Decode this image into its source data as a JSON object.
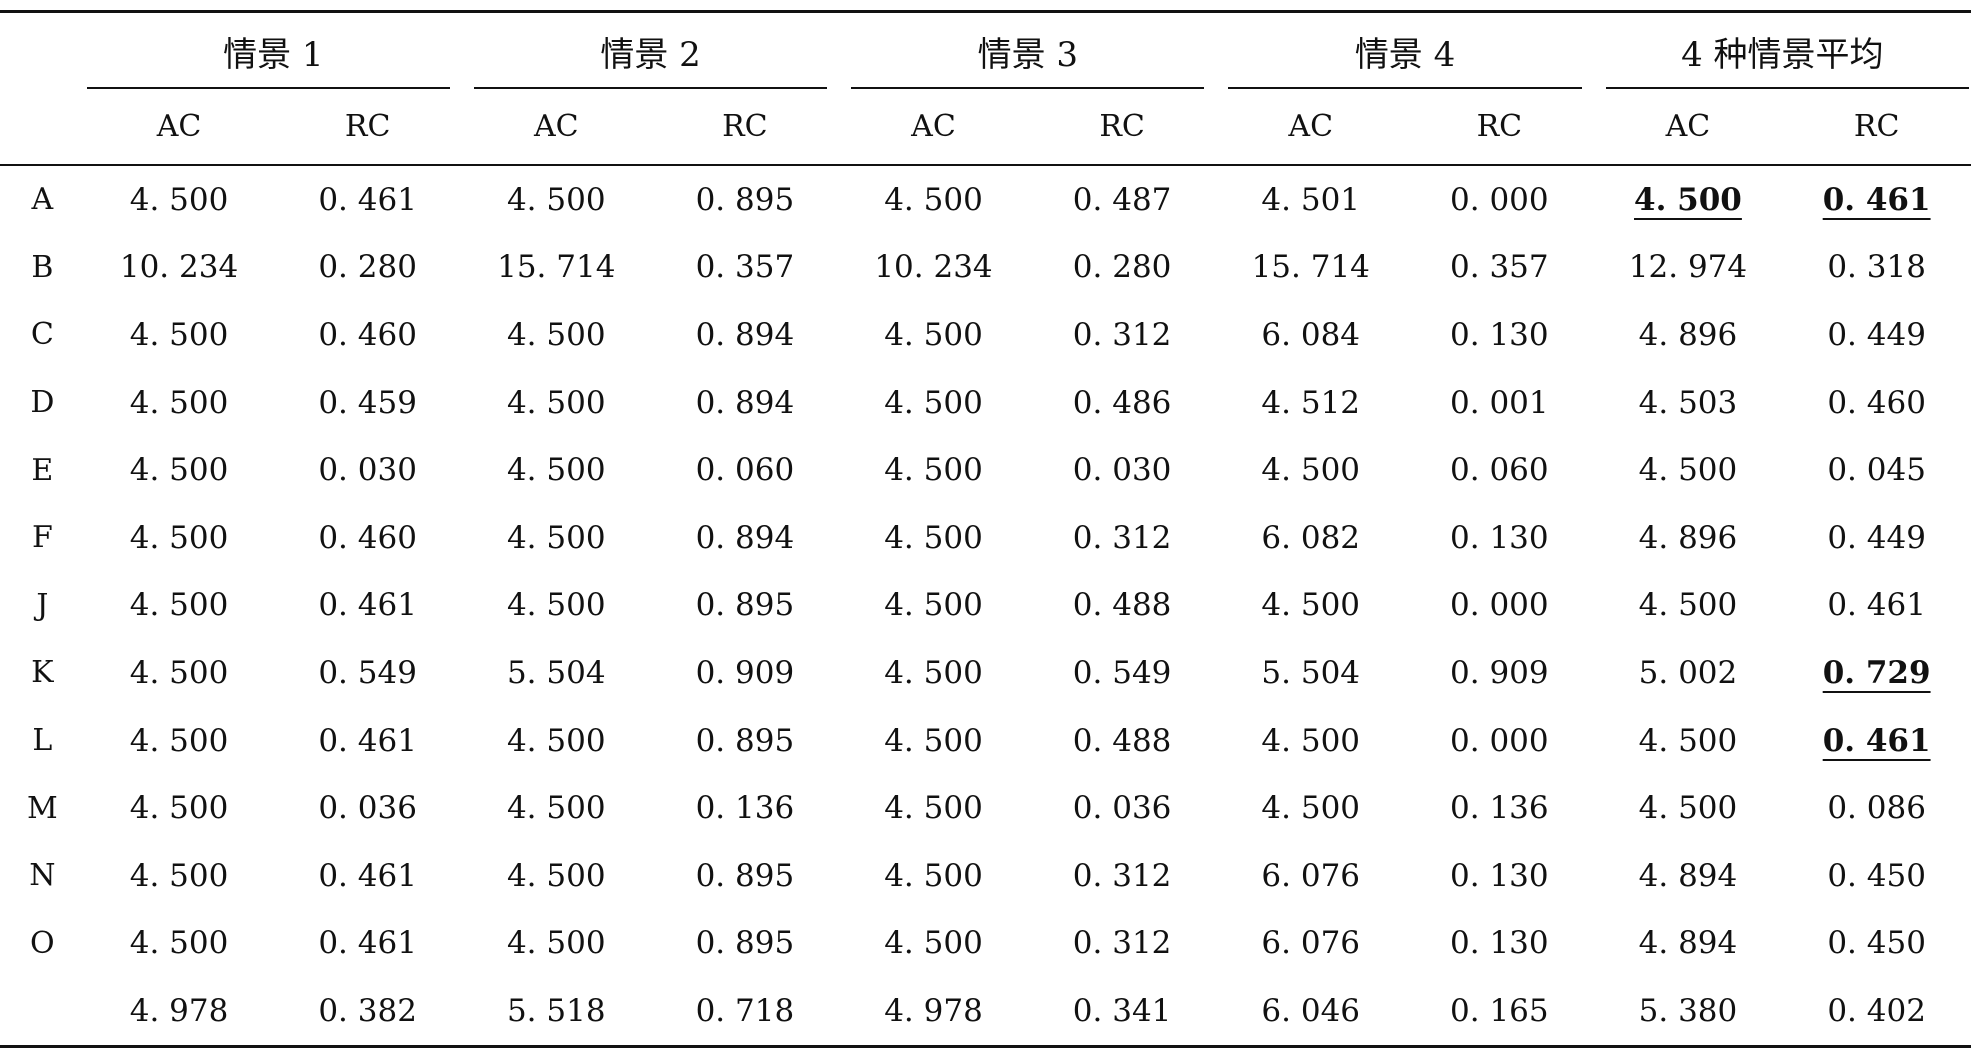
{
  "table": {
    "groups": [
      "情景 1",
      "情景 2",
      "情景 3",
      "情景 4",
      "4 种情景平均"
    ],
    "sub_headers": [
      "AC",
      "RC",
      "AC",
      "RC",
      "AC",
      "RC",
      "AC",
      "RC",
      "AC",
      "RC"
    ],
    "rows": [
      {
        "label": "A",
        "cells": [
          {
            "v": "4. 500",
            "bold": false
          },
          {
            "v": "0. 461",
            "bold": false
          },
          {
            "v": "4. 500",
            "bold": false
          },
          {
            "v": "0. 895",
            "bold": false
          },
          {
            "v": "4. 500",
            "bold": false
          },
          {
            "v": "0. 487",
            "bold": false
          },
          {
            "v": "4. 501",
            "bold": false
          },
          {
            "v": "0. 000",
            "bold": false
          },
          {
            "v": "4. 500",
            "bold": true
          },
          {
            "v": "0. 461",
            "bold": true
          }
        ]
      },
      {
        "label": "B",
        "cells": [
          {
            "v": "10. 234",
            "bold": false
          },
          {
            "v": "0. 280",
            "bold": false
          },
          {
            "v": "15. 714",
            "bold": false
          },
          {
            "v": "0. 357",
            "bold": false
          },
          {
            "v": "10. 234",
            "bold": false
          },
          {
            "v": "0. 280",
            "bold": false
          },
          {
            "v": "15. 714",
            "bold": false
          },
          {
            "v": "0. 357",
            "bold": false
          },
          {
            "v": "12. 974",
            "bold": false
          },
          {
            "v": "0. 318",
            "bold": false
          }
        ]
      },
      {
        "label": "C",
        "cells": [
          {
            "v": "4. 500",
            "bold": false
          },
          {
            "v": "0. 460",
            "bold": false
          },
          {
            "v": "4. 500",
            "bold": false
          },
          {
            "v": "0. 894",
            "bold": false
          },
          {
            "v": "4. 500",
            "bold": false
          },
          {
            "v": "0. 312",
            "bold": false
          },
          {
            "v": "6. 084",
            "bold": false
          },
          {
            "v": "0. 130",
            "bold": false
          },
          {
            "v": "4. 896",
            "bold": false
          },
          {
            "v": "0. 449",
            "bold": false
          }
        ]
      },
      {
        "label": "D",
        "cells": [
          {
            "v": "4. 500",
            "bold": false
          },
          {
            "v": "0. 459",
            "bold": false
          },
          {
            "v": "4. 500",
            "bold": false
          },
          {
            "v": "0. 894",
            "bold": false
          },
          {
            "v": "4. 500",
            "bold": false
          },
          {
            "v": "0. 486",
            "bold": false
          },
          {
            "v": "4. 512",
            "bold": false
          },
          {
            "v": "0. 001",
            "bold": false
          },
          {
            "v": "4. 503",
            "bold": false
          },
          {
            "v": "0. 460",
            "bold": false
          }
        ]
      },
      {
        "label": "E",
        "cells": [
          {
            "v": "4. 500",
            "bold": false
          },
          {
            "v": "0. 030",
            "bold": false
          },
          {
            "v": "4. 500",
            "bold": false
          },
          {
            "v": "0. 060",
            "bold": false
          },
          {
            "v": "4. 500",
            "bold": false
          },
          {
            "v": "0. 030",
            "bold": false
          },
          {
            "v": "4. 500",
            "bold": false
          },
          {
            "v": "0. 060",
            "bold": false
          },
          {
            "v": "4. 500",
            "bold": false
          },
          {
            "v": "0. 045",
            "bold": false
          }
        ]
      },
      {
        "label": "F",
        "cells": [
          {
            "v": "4. 500",
            "bold": false
          },
          {
            "v": "0. 460",
            "bold": false
          },
          {
            "v": "4. 500",
            "bold": false
          },
          {
            "v": "0. 894",
            "bold": false
          },
          {
            "v": "4. 500",
            "bold": false
          },
          {
            "v": "0. 312",
            "bold": false
          },
          {
            "v": "6. 082",
            "bold": false
          },
          {
            "v": "0. 130",
            "bold": false
          },
          {
            "v": "4. 896",
            "bold": false
          },
          {
            "v": "0. 449",
            "bold": false
          }
        ]
      },
      {
        "label": "J",
        "cells": [
          {
            "v": "4. 500",
            "bold": false
          },
          {
            "v": "0. 461",
            "bold": false
          },
          {
            "v": "4. 500",
            "bold": false
          },
          {
            "v": "0. 895",
            "bold": false
          },
          {
            "v": "4. 500",
            "bold": false
          },
          {
            "v": "0. 488",
            "bold": false
          },
          {
            "v": "4. 500",
            "bold": false
          },
          {
            "v": "0. 000",
            "bold": false
          },
          {
            "v": "4. 500",
            "bold": false
          },
          {
            "v": "0. 461",
            "bold": false
          }
        ]
      },
      {
        "label": "K",
        "cells": [
          {
            "v": "4. 500",
            "bold": false
          },
          {
            "v": "0. 549",
            "bold": false
          },
          {
            "v": "5. 504",
            "bold": false
          },
          {
            "v": "0. 909",
            "bold": false
          },
          {
            "v": "4. 500",
            "bold": false
          },
          {
            "v": "0. 549",
            "bold": false
          },
          {
            "v": "5. 504",
            "bold": false
          },
          {
            "v": "0. 909",
            "bold": false
          },
          {
            "v": "5. 002",
            "bold": false
          },
          {
            "v": "0. 729",
            "bold": true
          }
        ]
      },
      {
        "label": "L",
        "cells": [
          {
            "v": "4. 500",
            "bold": false
          },
          {
            "v": "0. 461",
            "bold": false
          },
          {
            "v": "4. 500",
            "bold": false
          },
          {
            "v": "0. 895",
            "bold": false
          },
          {
            "v": "4. 500",
            "bold": false
          },
          {
            "v": "0. 488",
            "bold": false
          },
          {
            "v": "4. 500",
            "bold": false
          },
          {
            "v": "0. 000",
            "bold": false
          },
          {
            "v": "4. 500",
            "bold": false
          },
          {
            "v": "0. 461",
            "bold": true
          }
        ]
      },
      {
        "label": "M",
        "cells": [
          {
            "v": "4. 500",
            "bold": false
          },
          {
            "v": "0. 036",
            "bold": false
          },
          {
            "v": "4. 500",
            "bold": false
          },
          {
            "v": "0. 136",
            "bold": false
          },
          {
            "v": "4. 500",
            "bold": false
          },
          {
            "v": "0. 036",
            "bold": false
          },
          {
            "v": "4. 500",
            "bold": false
          },
          {
            "v": "0. 136",
            "bold": false
          },
          {
            "v": "4. 500",
            "bold": false
          },
          {
            "v": "0. 086",
            "bold": false
          }
        ]
      },
      {
        "label": "N",
        "cells": [
          {
            "v": "4. 500",
            "bold": false
          },
          {
            "v": "0. 461",
            "bold": false
          },
          {
            "v": "4. 500",
            "bold": false
          },
          {
            "v": "0. 895",
            "bold": false
          },
          {
            "v": "4. 500",
            "bold": false
          },
          {
            "v": "0. 312",
            "bold": false
          },
          {
            "v": "6. 076",
            "bold": false
          },
          {
            "v": "0. 130",
            "bold": false
          },
          {
            "v": "4. 894",
            "bold": false
          },
          {
            "v": "0. 450",
            "bold": false
          }
        ]
      },
      {
        "label": "O",
        "cells": [
          {
            "v": "4. 500",
            "bold": false
          },
          {
            "v": "0. 461",
            "bold": false
          },
          {
            "v": "4. 500",
            "bold": false
          },
          {
            "v": "0. 895",
            "bold": false
          },
          {
            "v": "4. 500",
            "bold": false
          },
          {
            "v": "0. 312",
            "bold": false
          },
          {
            "v": "6. 076",
            "bold": false
          },
          {
            "v": "0. 130",
            "bold": false
          },
          {
            "v": "4. 894",
            "bold": false
          },
          {
            "v": "0. 450",
            "bold": false
          }
        ]
      },
      {
        "label": "",
        "cells": [
          {
            "v": "4. 978",
            "bold": false
          },
          {
            "v": "0. 382",
            "bold": false
          },
          {
            "v": "5. 518",
            "bold": false
          },
          {
            "v": "0. 718",
            "bold": false
          },
          {
            "v": "4. 978",
            "bold": false
          },
          {
            "v": "0. 341",
            "bold": false
          },
          {
            "v": "6. 046",
            "bold": false
          },
          {
            "v": "0. 165",
            "bold": false
          },
          {
            "v": "5. 380",
            "bold": false
          },
          {
            "v": "0. 402",
            "bold": false
          }
        ]
      }
    ]
  }
}
